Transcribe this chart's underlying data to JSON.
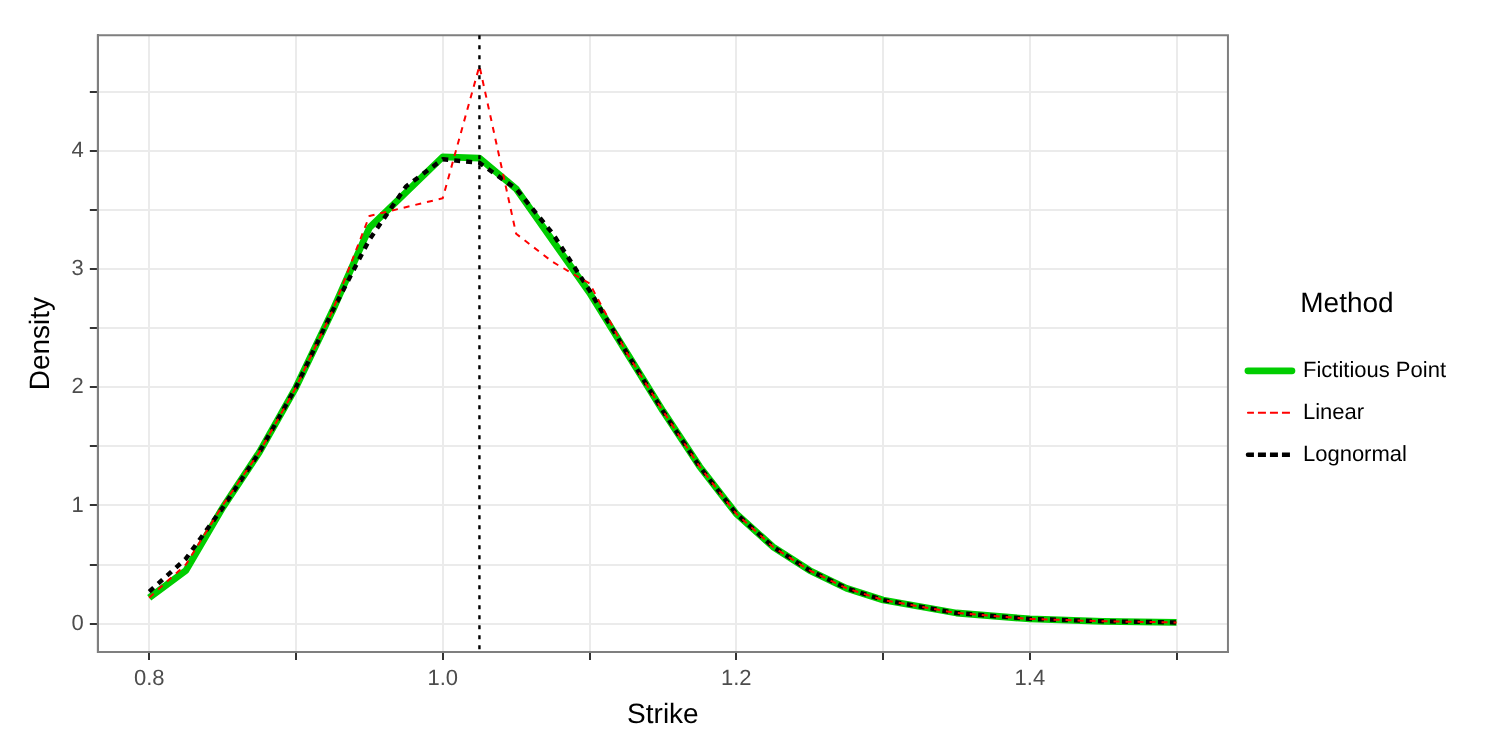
{
  "chart_data": {
    "type": "line",
    "xlabel": "Strike",
    "ylabel": "Density",
    "legend_title": "Method",
    "legend": "right",
    "grid": true,
    "marker": "none",
    "xlim": [
      0.765,
      1.535
    ],
    "ylim": [
      -0.24,
      4.98
    ],
    "xticks": [
      0.8,
      {
        "value": 0.9,
        "label": null
      },
      {
        "value": 1.0,
        "label": "1.0"
      },
      {
        "value": 1.1,
        "label": null
      },
      1.2,
      {
        "value": 1.3,
        "label": null
      },
      1.4,
      {
        "value": 1.5,
        "label": null
      }
    ],
    "yticks": [
      0,
      {
        "value": 0.5,
        "label": null
      },
      1,
      {
        "value": 1.5,
        "label": null
      },
      2,
      {
        "value": 2.5,
        "label": null
      },
      3,
      {
        "value": 3.5,
        "label": null
      },
      4,
      {
        "value": 4.5,
        "label": null
      }
    ],
    "ref_lines": [
      {
        "axis": "x",
        "value": 1.025,
        "color": "#000000",
        "line_style": "dotted"
      }
    ],
    "series": [
      {
        "name": "Fictitious Point",
        "color": "#00cd00",
        "line_style": "solid",
        "x": [
          0.8,
          0.825,
          0.85,
          0.875,
          0.9,
          0.925,
          0.95,
          1.0,
          1.025,
          1.05,
          1.1,
          1.125,
          1.15,
          1.175,
          1.2,
          1.225,
          1.25,
          1.275,
          1.3,
          1.35,
          1.4,
          1.45,
          1.5
        ],
        "values": [
          0.22,
          0.45,
          0.98,
          1.45,
          2.0,
          2.65,
          3.35,
          3.95,
          3.94,
          3.68,
          2.8,
          2.3,
          1.8,
          1.33,
          0.93,
          0.65,
          0.45,
          0.3,
          0.2,
          0.09,
          0.04,
          0.02,
          0.01
        ]
      },
      {
        "name": "Linear",
        "color": "#ff0000",
        "line_style": "dashed",
        "x": [
          0.8,
          0.825,
          0.85,
          0.875,
          0.9,
          0.925,
          0.95,
          1.0,
          1.025,
          1.05,
          1.075,
          1.1,
          1.125,
          1.15,
          1.175,
          1.2,
          1.225,
          1.25,
          1.275,
          1.3,
          1.35,
          1.4,
          1.45,
          1.5
        ],
        "values": [
          0.22,
          0.5,
          1.0,
          1.45,
          2.0,
          2.65,
          3.45,
          3.6,
          4.72,
          3.3,
          3.06,
          2.88,
          2.3,
          1.8,
          1.33,
          0.93,
          0.65,
          0.45,
          0.3,
          0.2,
          0.09,
          0.04,
          0.02,
          0.01
        ]
      },
      {
        "name": "Lognormal",
        "color": "#000000",
        "line_style": "dashed",
        "x": [
          0.8,
          0.825,
          0.85,
          0.875,
          0.9,
          0.925,
          0.95,
          0.975,
          1.0,
          1.025,
          1.05,
          1.075,
          1.1,
          1.125,
          1.15,
          1.175,
          1.2,
          1.225,
          1.25,
          1.275,
          1.3,
          1.35,
          1.4,
          1.45,
          1.5
        ],
        "values": [
          0.27,
          0.55,
          0.98,
          1.45,
          2.0,
          2.65,
          3.25,
          3.7,
          3.93,
          3.9,
          3.68,
          3.3,
          2.82,
          2.3,
          1.8,
          1.33,
          0.93,
          0.65,
          0.45,
          0.3,
          0.2,
          0.09,
          0.04,
          0.02,
          0.01
        ]
      }
    ]
  }
}
